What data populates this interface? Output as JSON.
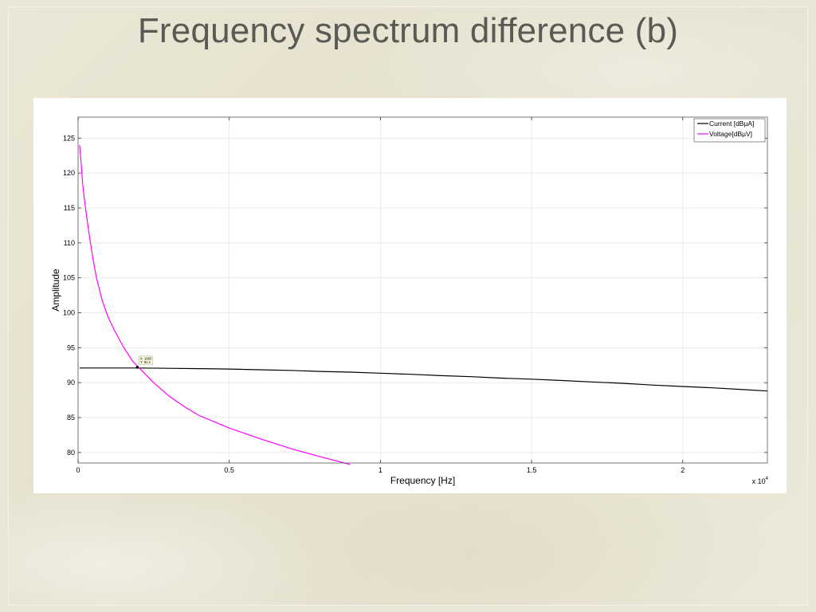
{
  "slide": {
    "title": "Frequency spectrum difference (b)"
  },
  "colors": {
    "current": "#000000",
    "voltage": "#ff00ff",
    "grid": "#e6e6e6"
  },
  "chart_data": {
    "type": "line",
    "xlabel": "Frequency [Hz]",
    "ylabel": "Amplitude",
    "x_multiplier_label": "x 10",
    "x_multiplier_exp": "4",
    "xlim": [
      0,
      22800
    ],
    "ylim": [
      78.5,
      128
    ],
    "xticks": [
      0,
      5000,
      10000,
      15000,
      20000
    ],
    "xtick_labels": [
      "0",
      "0.5",
      "1",
      "1.5",
      "2"
    ],
    "yticks": [
      80,
      85,
      90,
      95,
      100,
      105,
      110,
      115,
      120,
      125
    ],
    "ytick_labels": [
      "80",
      "85",
      "90",
      "95",
      "100",
      "105",
      "110",
      "115",
      "120",
      "125"
    ],
    "grid": true,
    "legend_position": "top-right",
    "series": [
      {
        "name": "Current [dBµA]",
        "color": "#000000",
        "x": [
          50,
          1000,
          2000,
          3000,
          4000,
          5000,
          6000,
          7000,
          8000,
          9000,
          10000,
          11000,
          12000,
          13000,
          14000,
          15000,
          16000,
          17000,
          18000,
          19000,
          20000,
          21000,
          22000,
          22800
        ],
        "y": [
          92.1,
          92.1,
          92.1,
          92.05,
          92.0,
          91.95,
          91.85,
          91.75,
          91.6,
          91.5,
          91.35,
          91.2,
          91.0,
          90.85,
          90.65,
          90.5,
          90.3,
          90.1,
          89.9,
          89.65,
          89.45,
          89.25,
          89.0,
          88.8
        ]
      },
      {
        "name": "Voltage[dBµV]",
        "color": "#ff00ff",
        "x": [
          50,
          100,
          150,
          200,
          300,
          400,
          500,
          600,
          800,
          1000,
          1200,
          1500,
          1800,
          2000,
          2500,
          3000,
          3500,
          4000,
          5000,
          6000,
          7000,
          8000,
          9000
        ],
        "y": [
          124.0,
          121.5,
          118.5,
          116.5,
          113.2,
          110.2,
          107.5,
          105.1,
          101.7,
          99.3,
          97.5,
          95.1,
          93.1,
          92.2,
          90.0,
          88.1,
          86.6,
          85.3,
          83.5,
          82.0,
          80.6,
          79.4,
          78.3
        ]
      }
    ],
    "data_tip": {
      "x": 1960,
      "y": 92.2,
      "line1": "X: 1960",
      "line2": "Y: 92.2"
    }
  }
}
